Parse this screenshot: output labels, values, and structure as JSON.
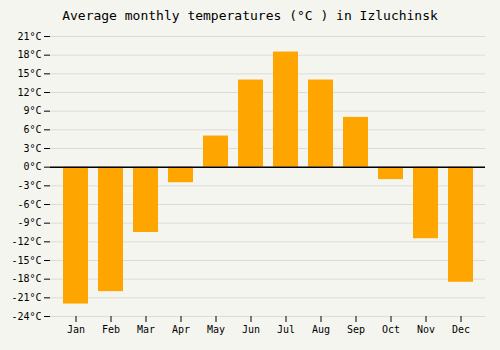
{
  "chart_data": {
    "type": "bar",
    "title": "Average monthly temperatures (°C ) in Izluchinsk",
    "categories": [
      "Jan",
      "Feb",
      "Mar",
      "Apr",
      "May",
      "Jun",
      "Jul",
      "Aug",
      "Sep",
      "Oct",
      "Nov",
      "Dec"
    ],
    "values": [
      -22,
      -20,
      -10.5,
      -2.5,
      5,
      14,
      18.5,
      14,
      8,
      -2,
      -11.5,
      -18.5
    ],
    "color": "#FFA500",
    "ylim": [
      -24,
      21
    ],
    "yticks": [
      {
        "value": -24,
        "label": "-24°C"
      },
      {
        "value": -21,
        "label": "-21°C"
      },
      {
        "value": -18,
        "label": "-18°C"
      },
      {
        "value": -15,
        "label": "-15°C"
      },
      {
        "value": -12,
        "label": "-12°C"
      },
      {
        "value": -9,
        "label": "-9°C"
      },
      {
        "value": -6,
        "label": "-6°C"
      },
      {
        "value": -3,
        "label": "-3°C"
      },
      {
        "value": 0,
        "label": "0°C"
      },
      {
        "value": 3,
        "label": "3°C"
      },
      {
        "value": 6,
        "label": "6°C"
      },
      {
        "value": 9,
        "label": "9°C"
      },
      {
        "value": 12,
        "label": "12°C"
      },
      {
        "value": 15,
        "label": "15°C"
      },
      {
        "value": 18,
        "label": "18°C"
      },
      {
        "value": 21,
        "label": "21°C"
      }
    ],
    "grid": true
  }
}
